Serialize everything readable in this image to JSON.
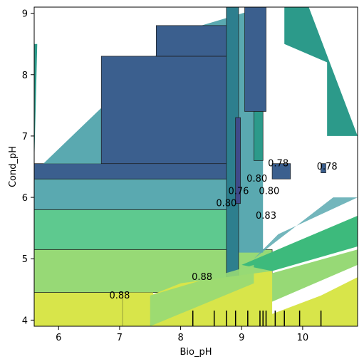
{
  "chart_data": {
    "type": "contour",
    "xlabel": "Bio_pH",
    "ylabel": "Cond_pH",
    "xlim": [
      5.6,
      10.9
    ],
    "ylim": [
      3.9,
      9.1
    ],
    "x_ticks": [
      "6",
      "7",
      "8",
      "9",
      "10"
    ],
    "y_ticks": [
      "4",
      "5",
      "6",
      "7",
      "8",
      "9"
    ],
    "grid": false,
    "levels": [
      {
        "max": 0.74,
        "color": "#3f4a8a"
      },
      {
        "max": 0.76,
        "color": "#3b5f8e"
      },
      {
        "max": 0.78,
        "color": "#2d7f8e"
      },
      {
        "max": 0.8,
        "color": "#2c9a8a"
      },
      {
        "max": 0.82,
        "color": "#5aa9b0"
      },
      {
        "max": 0.84,
        "color": "#3dba7c"
      },
      {
        "max": 0.86,
        "color": "#5ec98f"
      },
      {
        "max": 0.88,
        "color": "#97d976"
      },
      {
        "max": 0.9,
        "color": "#d8e54a"
      }
    ],
    "contour_labels": [
      {
        "text": "0.88",
        "x": 7.0,
        "y": 4.4
      },
      {
        "text": "0.88",
        "x": 8.35,
        "y": 4.7
      },
      {
        "text": "0.80",
        "x": 8.75,
        "y": 5.9
      },
      {
        "text": "0.76",
        "x": 8.95,
        "y": 6.1
      },
      {
        "text": "0.80",
        "x": 9.25,
        "y": 6.3
      },
      {
        "text": "0.80",
        "x": 9.45,
        "y": 6.1
      },
      {
        "text": "0.78",
        "x": 9.6,
        "y": 6.55
      },
      {
        "text": "0.78",
        "x": 10.4,
        "y": 6.5
      },
      {
        "text": "0.83",
        "x": 9.4,
        "y": 5.7
      }
    ],
    "rug_x": [
      8.2,
      8.55,
      8.75,
      8.9,
      9.1,
      9.3,
      9.35,
      9.4,
      9.55,
      9.7,
      9.95,
      10.3
    ]
  }
}
